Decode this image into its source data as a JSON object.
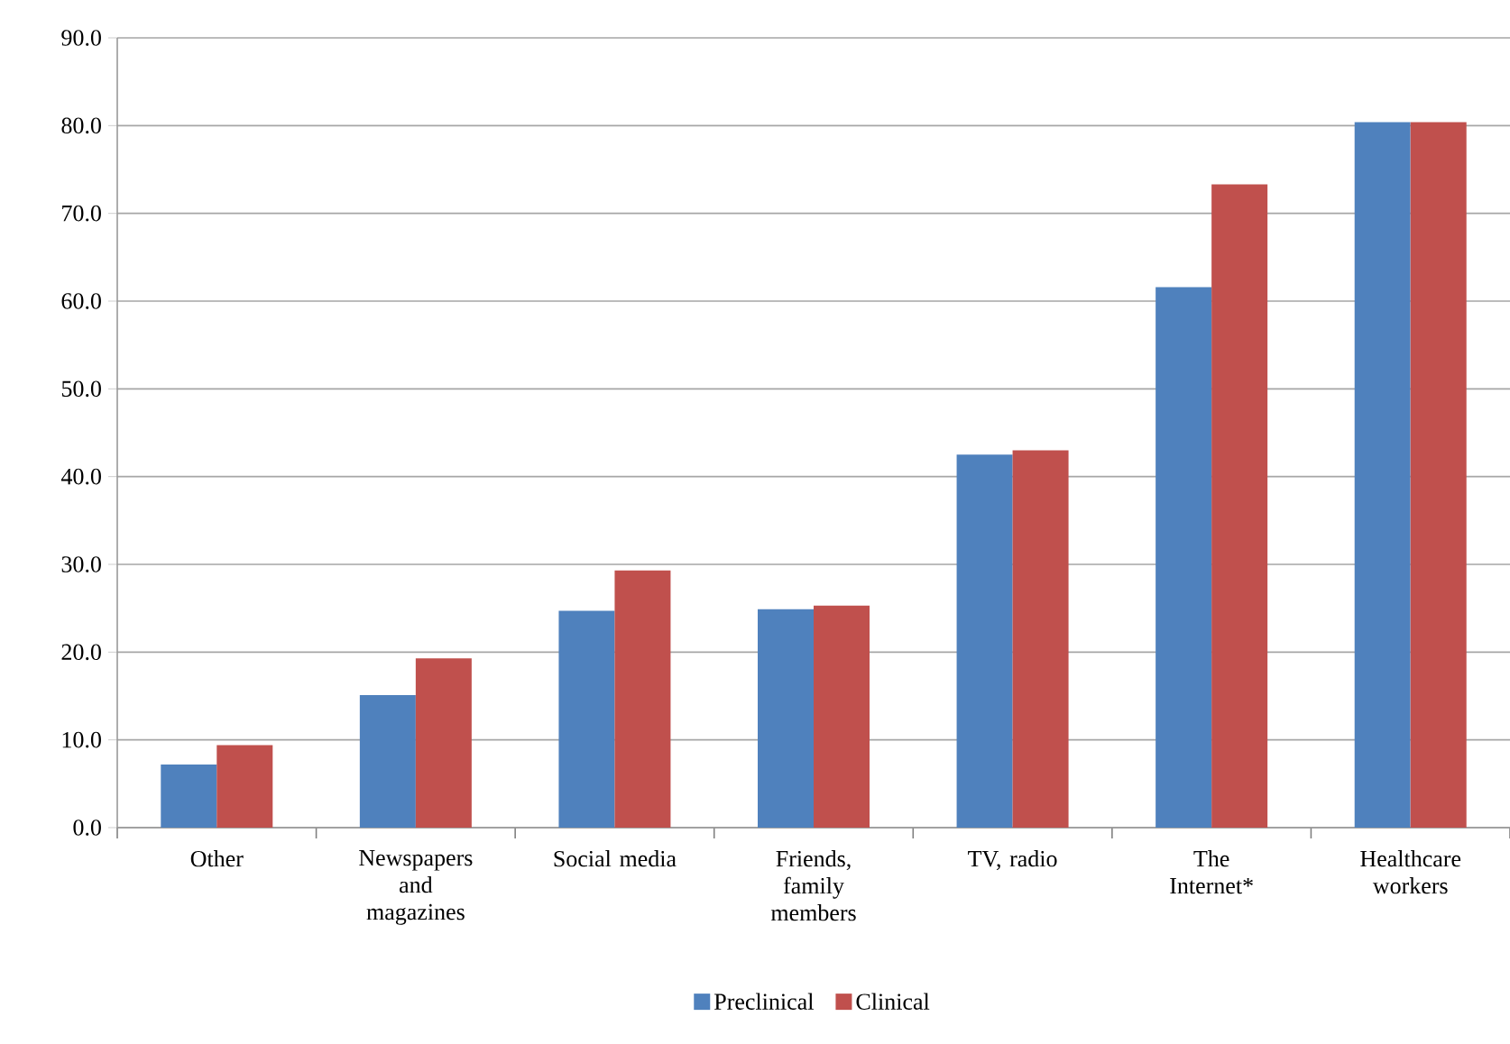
{
  "chart_data": {
    "type": "bar",
    "categories": [
      "Other",
      "Newspapers and magazines",
      "Social media",
      "Friends, family members",
      "TV, radio",
      "The Internet*",
      "Healthcare workers"
    ],
    "series": [
      {
        "name": "Preclinical",
        "color": "#4f81bd",
        "values": [
          7.2,
          15.1,
          24.7,
          24.9,
          42.5,
          61.6,
          80.4
        ]
      },
      {
        "name": "Clinical",
        "color": "#c0504d",
        "values": [
          9.4,
          19.3,
          29.3,
          25.3,
          43.0,
          73.3,
          80.4
        ]
      }
    ],
    "ylim": [
      0,
      90
    ],
    "yticks": [
      {
        "value": 0,
        "label": "0.0"
      },
      {
        "value": 10,
        "label": "10.0"
      },
      {
        "value": 20,
        "label": "20.0"
      },
      {
        "value": 30,
        "label": "30.0"
      },
      {
        "value": 40,
        "label": "40.0"
      },
      {
        "value": 50,
        "label": "50.0"
      },
      {
        "value": 60,
        "label": "60.0"
      },
      {
        "value": 70,
        "label": "70.0"
      },
      {
        "value": 80,
        "label": "80.0"
      },
      {
        "value": 90,
        "label": "90.0"
      }
    ],
    "grid": "y",
    "legend": "bottom"
  }
}
